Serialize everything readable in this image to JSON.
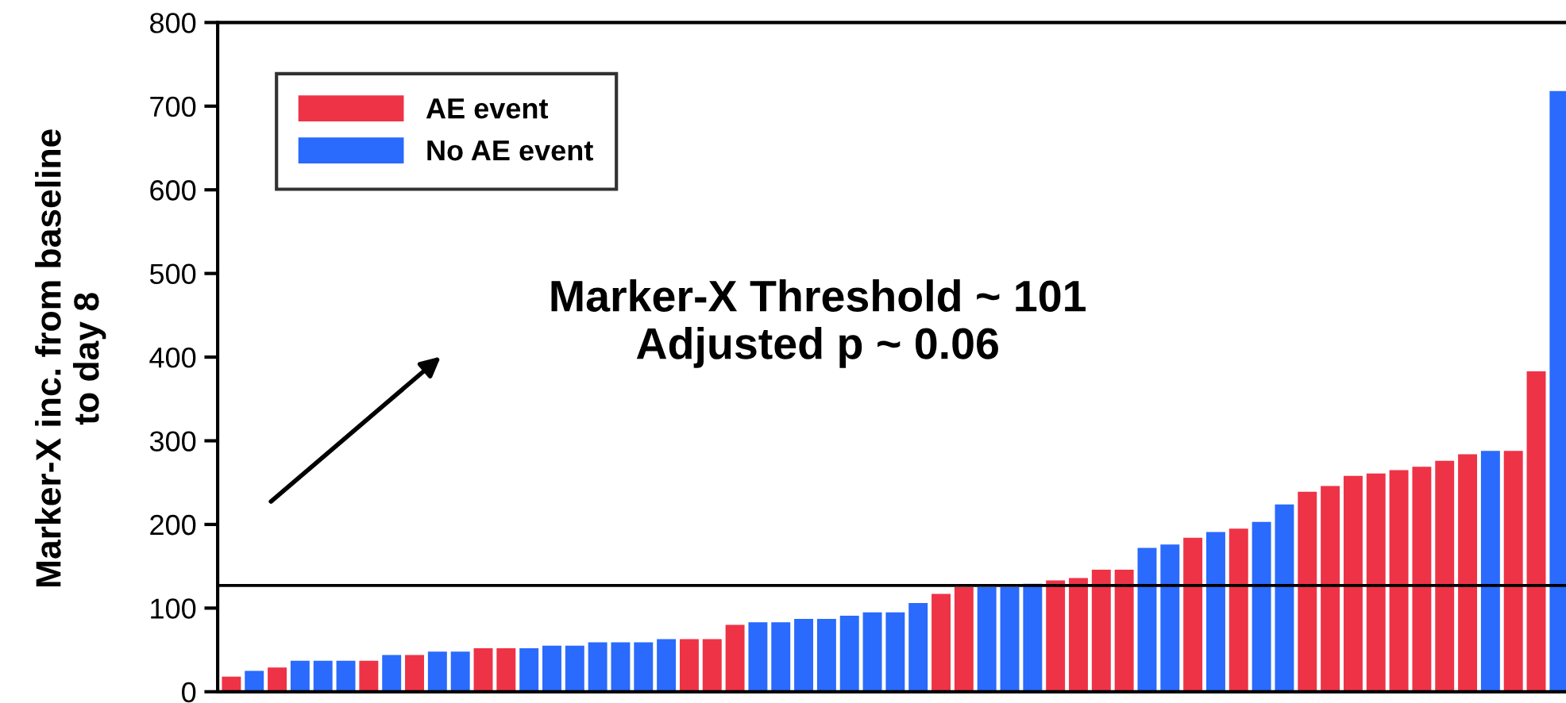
{
  "chart_data": {
    "type": "bar",
    "ylabel": "Marker-X inc. from baseline\nto day 8",
    "annotations": [
      "Marker-X Threshold ~ 101\nAdjusted p ~ 0.06"
    ],
    "categories": [
      null,
      null,
      null,
      null,
      null,
      null,
      null,
      null,
      null,
      null,
      null,
      null,
      null,
      null,
      null,
      null,
      null,
      null,
      null,
      null,
      null,
      null,
      null,
      null,
      null,
      null,
      null,
      null,
      null,
      null,
      null,
      null,
      null,
      null,
      null,
      null,
      null,
      null,
      null,
      null,
      null,
      null,
      null,
      null,
      null,
      null,
      null,
      null,
      null,
      null,
      null,
      null,
      null,
      null,
      null,
      null,
      null,
      null,
      null
    ],
    "series": [
      {
        "name": "AE event",
        "color": "#ee3347",
        "values": [
          18,
          null,
          29,
          null,
          null,
          null,
          37,
          null,
          44,
          null,
          null,
          52,
          52,
          null,
          null,
          null,
          null,
          null,
          null,
          null,
          63,
          63,
          80,
          null,
          null,
          null,
          null,
          null,
          null,
          null,
          null,
          117,
          125,
          null,
          null,
          null,
          133,
          136,
          146,
          146,
          null,
          null,
          184,
          null,
          195,
          null,
          null,
          239,
          246,
          258,
          261,
          265,
          269,
          276,
          284,
          null,
          288,
          383,
          null
        ]
      },
      {
        "name": "No AE event",
        "color": "#2a6afc",
        "values": [
          null,
          25,
          null,
          37,
          37,
          37,
          null,
          44,
          null,
          48,
          48,
          null,
          null,
          52,
          55,
          55,
          59,
          59,
          59,
          63,
          null,
          null,
          null,
          83,
          83,
          87,
          87,
          91,
          95,
          95,
          106,
          null,
          null,
          125,
          125,
          129,
          null,
          null,
          null,
          null,
          172,
          176,
          null,
          191,
          null,
          203,
          224,
          null,
          null,
          null,
          null,
          null,
          null,
          null,
          null,
          288,
          null,
          null,
          718
        ]
      }
    ],
    "ylim": [
      0,
      800
    ],
    "yticks": [
      0,
      100,
      200,
      300,
      400,
      500,
      600,
      700,
      800
    ],
    "ref_lines": [
      {
        "axis": "y",
        "value": 127,
        "color": "#000000"
      }
    ],
    "tick_labels": "y",
    "grid": false,
    "legend": "top left"
  }
}
